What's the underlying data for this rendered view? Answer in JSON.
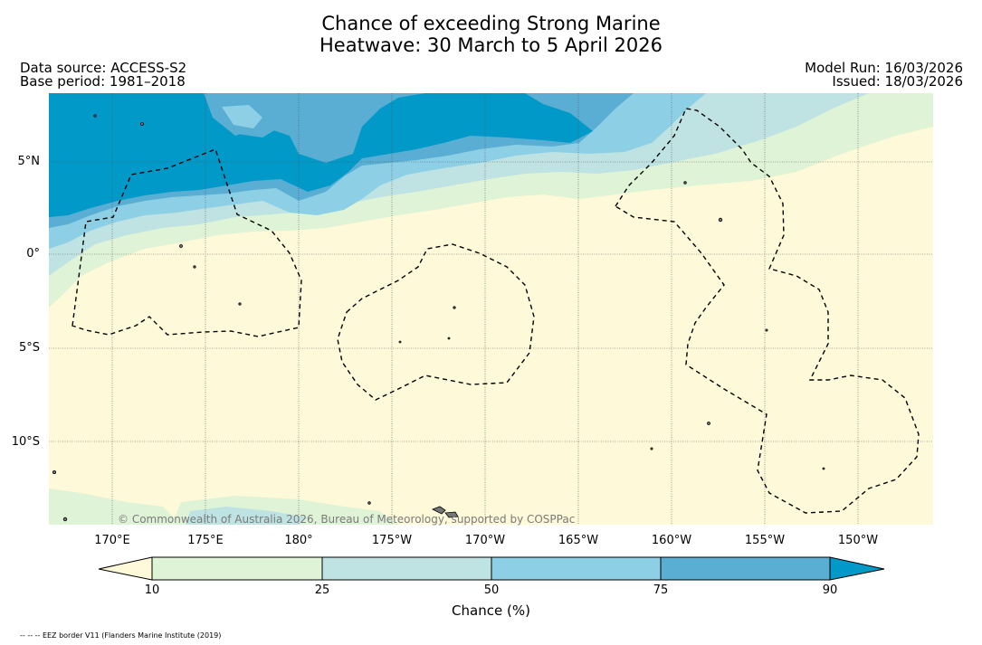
{
  "title": {
    "line1": "Chance of exceeding Strong Marine",
    "line2": "Heatwave: 30 March to 5 April 2026"
  },
  "meta": {
    "data_source": "Data source: ACCESS-S2",
    "base_period": "Base period: 1981–2018",
    "model_run": "Model Run: 16/03/2026",
    "issued": "Issued: 18/03/2026"
  },
  "map": {
    "lat_labels": [
      "5°N",
      "0°",
      "5°S",
      "10°S"
    ],
    "lon_labels": [
      "170°E",
      "175°E",
      "180°",
      "175°W",
      "170°W",
      "165°W",
      "160°W",
      "155°W",
      "150°W"
    ],
    "copyright": "© Commonwealth of Australia 2026, Bureau of Meteorology, supported by COSPPac"
  },
  "colorbar": {
    "title": "Chance (%)",
    "ticks": [
      "10",
      "25",
      "50",
      "75",
      "90"
    ],
    "colors": {
      "under10": "#fef9d8",
      "c10_25": "#dff3d6",
      "c25_50": "#bfe3e3",
      "c50_75": "#8dd0e6",
      "c75_90": "#5aadd3",
      "over90": "#0099c8"
    }
  },
  "footnote": "-- -- -- EEZ border V11 (Flanders Marine Institute (2019)"
}
